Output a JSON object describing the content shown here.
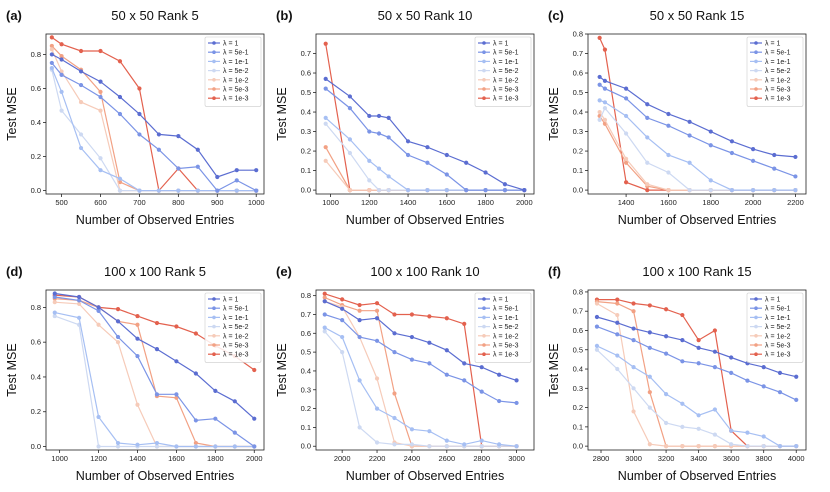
{
  "figure": {
    "xlabel": "Number of Observed Entries",
    "ylabel": "Test MSE",
    "legend_labels": [
      "λ = 1",
      "λ = 5e-1",
      "λ = 1e-1",
      "λ = 5e-2",
      "λ = 1e-2",
      "λ = 5e-3",
      "λ = 1e-3"
    ],
    "series_colors": [
      "#5b6dd1",
      "#7b94e6",
      "#a6bff3",
      "#cdd9f2",
      "#f6cbb9",
      "#f2a184",
      "#e3614e"
    ]
  },
  "chart_data": [
    {
      "type": "line",
      "panel_label": "(a)",
      "title": "50 x 50 Rank 5",
      "xlim": [
        460,
        1020
      ],
      "ylim": [
        -0.02,
        0.92
      ],
      "xticks": [
        500,
        600,
        700,
        800,
        900,
        1000
      ],
      "yticks": [
        0.0,
        0.2,
        0.4,
        0.6,
        0.8
      ],
      "x": [
        475,
        500,
        550,
        600,
        650,
        700,
        750,
        800,
        850,
        900,
        950,
        1000
      ],
      "series": [
        {
          "name": "λ = 1",
          "values": [
            0.8,
            0.77,
            0.7,
            0.64,
            0.55,
            0.45,
            0.33,
            0.32,
            0.24,
            0.08,
            0.12,
            0.12
          ]
        },
        {
          "name": "λ = 5e-1",
          "values": [
            0.75,
            0.68,
            0.62,
            0.55,
            0.45,
            0.33,
            0.24,
            0.13,
            0.14,
            0.0,
            0.06,
            0.0
          ]
        },
        {
          "name": "λ = 1e-1",
          "values": [
            0.72,
            0.58,
            0.25,
            0.12,
            0.07,
            0.0,
            0.0,
            0.0,
            0.0,
            0.0,
            0.0,
            0.0
          ]
        },
        {
          "name": "λ = 5e-2",
          "values": [
            0.71,
            0.47,
            0.33,
            0.19,
            0.0,
            0.0,
            0.0,
            0.0,
            0.0,
            0.0,
            0.0,
            0.0
          ]
        },
        {
          "name": "λ = 1e-2",
          "values": [
            0.83,
            0.7,
            0.52,
            0.47,
            0.0,
            0.0,
            0.0,
            0.0,
            0.0,
            0.0,
            0.0,
            0.0
          ]
        },
        {
          "name": "λ = 5e-3",
          "values": [
            0.85,
            0.79,
            0.71,
            0.58,
            0.05,
            0.0,
            0.0,
            0.0,
            0.0,
            0.0,
            0.0,
            0.0
          ]
        },
        {
          "name": "λ = 1e-3",
          "values": [
            0.9,
            0.86,
            0.82,
            0.82,
            0.76,
            0.6,
            0.0,
            0.13,
            0.0,
            0.0,
            0.0,
            0.0
          ]
        }
      ]
    },
    {
      "type": "line",
      "panel_label": "(b)",
      "title": "50 x 50 Rank 10",
      "xlim": [
        925,
        2050
      ],
      "ylim": [
        -0.02,
        0.8
      ],
      "xticks": [
        1000,
        1200,
        1400,
        1600,
        1800,
        2000
      ],
      "yticks": [
        0.0,
        0.1,
        0.2,
        0.3,
        0.4,
        0.5,
        0.6,
        0.7
      ],
      "x": [
        975,
        1100,
        1200,
        1250,
        1300,
        1400,
        1500,
        1600,
        1700,
        1800,
        1900,
        2000
      ],
      "series": [
        {
          "name": "λ = 1",
          "values": [
            0.57,
            0.48,
            0.38,
            0.38,
            0.37,
            0.25,
            0.22,
            0.18,
            0.14,
            0.09,
            0.03,
            0.0
          ]
        },
        {
          "name": "λ = 5e-1",
          "values": [
            0.52,
            0.42,
            0.3,
            0.29,
            0.27,
            0.18,
            0.14,
            0.08,
            0.0,
            0.0,
            0.0,
            0.0
          ]
        },
        {
          "name": "λ = 1e-1",
          "values": [
            0.37,
            0.26,
            0.15,
            0.11,
            0.07,
            0.0,
            0.0,
            0.0,
            0.0,
            0.0,
            0.0,
            0.0
          ]
        },
        {
          "name": "λ = 5e-2",
          "values": [
            0.34,
            0.19,
            0.05,
            0.0,
            0.0,
            0.0,
            0.0,
            0.0,
            0.0,
            0.0,
            0.0,
            0.0
          ]
        },
        {
          "name": "λ = 1e-2",
          "values": [
            0.15,
            0.0,
            0.0,
            0.0,
            0.0,
            0.0,
            0.0,
            0.0,
            0.0,
            0.0,
            0.0,
            0.0
          ]
        },
        {
          "name": "λ = 5e-3",
          "values": [
            0.22,
            0.0,
            0.0,
            0.0,
            0.0,
            0.0,
            0.0,
            0.0,
            0.0,
            0.0,
            0.0,
            0.0
          ]
        },
        {
          "name": "λ = 1e-3",
          "values": [
            0.75,
            0.0,
            0.0,
            0.0,
            0.0,
            0.0,
            0.0,
            0.0,
            0.0,
            0.0,
            0.0,
            0.0
          ]
        }
      ]
    },
    {
      "type": "line",
      "panel_label": "(c)",
      "title": "50 x 50 Rank 15",
      "xlim": [
        1220,
        2250
      ],
      "ylim": [
        -0.02,
        0.8
      ],
      "xticks": [
        1400,
        1600,
        1800,
        2000,
        2200
      ],
      "yticks": [
        0.0,
        0.1,
        0.2,
        0.3,
        0.4,
        0.5,
        0.6,
        0.7,
        0.8
      ],
      "x": [
        1275,
        1300,
        1400,
        1500,
        1600,
        1700,
        1800,
        1900,
        2000,
        2100,
        2200
      ],
      "series": [
        {
          "name": "λ = 1",
          "values": [
            0.58,
            0.56,
            0.52,
            0.44,
            0.39,
            0.35,
            0.3,
            0.25,
            0.21,
            0.18,
            0.17
          ]
        },
        {
          "name": "λ = 5e-1",
          "values": [
            0.54,
            0.52,
            0.47,
            0.37,
            0.33,
            0.28,
            0.23,
            0.19,
            0.15,
            0.11,
            0.07
          ]
        },
        {
          "name": "λ = 1e-1",
          "values": [
            0.46,
            0.45,
            0.38,
            0.27,
            0.18,
            0.14,
            0.05,
            0.0,
            0.0,
            0.0,
            0.0
          ]
        },
        {
          "name": "λ = 5e-2",
          "values": [
            0.36,
            0.42,
            0.29,
            0.14,
            0.09,
            0.0,
            0.0,
            0.0,
            0.0,
            0.0,
            0.0
          ]
        },
        {
          "name": "λ = 1e-2",
          "values": [
            0.4,
            0.36,
            0.16,
            0.03,
            0.0,
            0.0,
            0.0,
            0.0,
            0.0,
            0.0,
            0.0
          ]
        },
        {
          "name": "λ = 5e-3",
          "values": [
            0.38,
            0.34,
            0.14,
            0.02,
            0.0,
            0.0,
            0.0,
            0.0,
            0.0,
            0.0,
            0.0
          ]
        },
        {
          "name": "λ = 1e-3",
          "values": [
            0.78,
            0.72,
            0.04,
            0.0,
            0.0,
            0.0,
            0.0,
            0.0,
            0.0,
            0.0,
            0.0
          ]
        }
      ]
    },
    {
      "type": "line",
      "panel_label": "(d)",
      "title": "100 x 100 Rank 5",
      "xlim": [
        930,
        2050
      ],
      "ylim": [
        -0.02,
        0.9
      ],
      "xticks": [
        1000,
        1200,
        1400,
        1600,
        1800,
        2000
      ],
      "yticks": [
        0.0,
        0.2,
        0.4,
        0.6,
        0.8
      ],
      "x": [
        975,
        1100,
        1200,
        1300,
        1400,
        1500,
        1600,
        1700,
        1800,
        1900,
        2000
      ],
      "series": [
        {
          "name": "λ = 1",
          "values": [
            0.88,
            0.86,
            0.8,
            0.72,
            0.62,
            0.56,
            0.49,
            0.42,
            0.32,
            0.26,
            0.16
          ]
        },
        {
          "name": "λ = 5e-1",
          "values": [
            0.86,
            0.84,
            0.78,
            0.63,
            0.52,
            0.3,
            0.3,
            0.15,
            0.16,
            0.08,
            0.0
          ]
        },
        {
          "name": "λ = 1e-1",
          "values": [
            0.77,
            0.74,
            0.17,
            0.02,
            0.01,
            0.02,
            0.0,
            0.0,
            0.0,
            0.0,
            0.0
          ]
        },
        {
          "name": "λ = 5e-2",
          "values": [
            0.75,
            0.7,
            0.0,
            0.0,
            0.0,
            0.0,
            0.0,
            0.0,
            0.0,
            0.0,
            0.0
          ]
        },
        {
          "name": "λ = 1e-2",
          "values": [
            0.83,
            0.82,
            0.7,
            0.6,
            0.24,
            0.0,
            0.0,
            0.0,
            0.0,
            0.0,
            0.0
          ]
        },
        {
          "name": "λ = 5e-3",
          "values": [
            0.85,
            0.84,
            0.8,
            0.72,
            0.7,
            0.29,
            0.28,
            0.02,
            0.0,
            0.0,
            0.0
          ]
        },
        {
          "name": "λ = 1e-3",
          "values": [
            0.87,
            0.86,
            0.8,
            0.79,
            0.75,
            0.71,
            0.69,
            0.65,
            0.58,
            0.52,
            0.44
          ]
        }
      ]
    },
    {
      "type": "line",
      "panel_label": "(e)",
      "title": "100 x 100 Rank 10",
      "xlim": [
        1850,
        3100
      ],
      "ylim": [
        -0.02,
        0.83
      ],
      "xticks": [
        2000,
        2200,
        2400,
        2600,
        2800,
        3000
      ],
      "yticks": [
        0.0,
        0.1,
        0.2,
        0.3,
        0.4,
        0.5,
        0.6,
        0.7,
        0.8
      ],
      "x": [
        1900,
        2000,
        2100,
        2200,
        2300,
        2400,
        2500,
        2600,
        2700,
        2800,
        2900,
        3000
      ],
      "series": [
        {
          "name": "λ = 1",
          "values": [
            0.77,
            0.73,
            0.67,
            0.68,
            0.6,
            0.58,
            0.55,
            0.51,
            0.44,
            0.42,
            0.38,
            0.35
          ]
        },
        {
          "name": "λ = 5e-1",
          "values": [
            0.7,
            0.67,
            0.58,
            0.56,
            0.5,
            0.46,
            0.44,
            0.38,
            0.35,
            0.29,
            0.24,
            0.23
          ]
        },
        {
          "name": "λ = 1e-1",
          "values": [
            0.63,
            0.58,
            0.35,
            0.2,
            0.15,
            0.09,
            0.08,
            0.03,
            0.01,
            0.03,
            0.01,
            0.0
          ]
        },
        {
          "name": "λ = 5e-2",
          "values": [
            0.61,
            0.5,
            0.1,
            0.02,
            0.01,
            0.01,
            0.0,
            0.0,
            0.0,
            0.0,
            0.0,
            0.0
          ]
        },
        {
          "name": "λ = 1e-2",
          "values": [
            0.77,
            0.74,
            0.58,
            0.36,
            0.02,
            0.0,
            0.0,
            0.0,
            0.0,
            0.0,
            0.0,
            0.0
          ]
        },
        {
          "name": "λ = 5e-3",
          "values": [
            0.79,
            0.75,
            0.72,
            0.72,
            0.28,
            0.0,
            0.0,
            0.0,
            0.0,
            0.0,
            0.0,
            0.0
          ]
        },
        {
          "name": "λ = 1e-3",
          "values": [
            0.81,
            0.78,
            0.75,
            0.76,
            0.7,
            0.7,
            0.69,
            0.68,
            0.65,
            0.0,
            0.0,
            0.0
          ]
        }
      ]
    },
    {
      "type": "line",
      "panel_label": "(f)",
      "title": "100 x 100 Rank 15",
      "xlim": [
        2720,
        4060
      ],
      "ylim": [
        -0.02,
        0.81
      ],
      "xticks": [
        2800,
        3000,
        3200,
        3400,
        3600,
        3800,
        4000
      ],
      "yticks": [
        0.0,
        0.1,
        0.2,
        0.3,
        0.4,
        0.5,
        0.6,
        0.7,
        0.8
      ],
      "x": [
        2775,
        2900,
        3000,
        3100,
        3200,
        3300,
        3400,
        3500,
        3600,
        3700,
        3800,
        3900,
        4000
      ],
      "series": [
        {
          "name": "λ = 1",
          "values": [
            0.67,
            0.64,
            0.61,
            0.59,
            0.57,
            0.55,
            0.51,
            0.49,
            0.46,
            0.43,
            0.41,
            0.38,
            0.36
          ]
        },
        {
          "name": "λ = 5e-1",
          "values": [
            0.62,
            0.58,
            0.55,
            0.51,
            0.48,
            0.44,
            0.43,
            0.41,
            0.38,
            0.34,
            0.31,
            0.28,
            0.24
          ]
        },
        {
          "name": "λ = 1e-1",
          "values": [
            0.52,
            0.47,
            0.41,
            0.36,
            0.27,
            0.22,
            0.16,
            0.19,
            0.08,
            0.07,
            0.05,
            0.0,
            0.0
          ]
        },
        {
          "name": "λ = 5e-2",
          "values": [
            0.5,
            0.4,
            0.3,
            0.2,
            0.12,
            0.1,
            0.09,
            0.06,
            0.01,
            0.0,
            0.0,
            0.0,
            0.0
          ]
        },
        {
          "name": "λ = 1e-2",
          "values": [
            0.74,
            0.68,
            0.18,
            0.01,
            0.0,
            0.0,
            0.0,
            0.0,
            0.0,
            0.0,
            0.0,
            0.0,
            0.0
          ]
        },
        {
          "name": "λ = 5e-3",
          "values": [
            0.75,
            0.74,
            0.7,
            0.28,
            0.0,
            0.0,
            0.0,
            0.0,
            0.0,
            0.0,
            0.0,
            0.0,
            0.0
          ]
        },
        {
          "name": "λ = 1e-3",
          "values": [
            0.76,
            0.76,
            0.74,
            0.73,
            0.71,
            0.68,
            0.55,
            0.6,
            0.08,
            0.0,
            0.0,
            0.0,
            0.0
          ]
        }
      ]
    }
  ]
}
